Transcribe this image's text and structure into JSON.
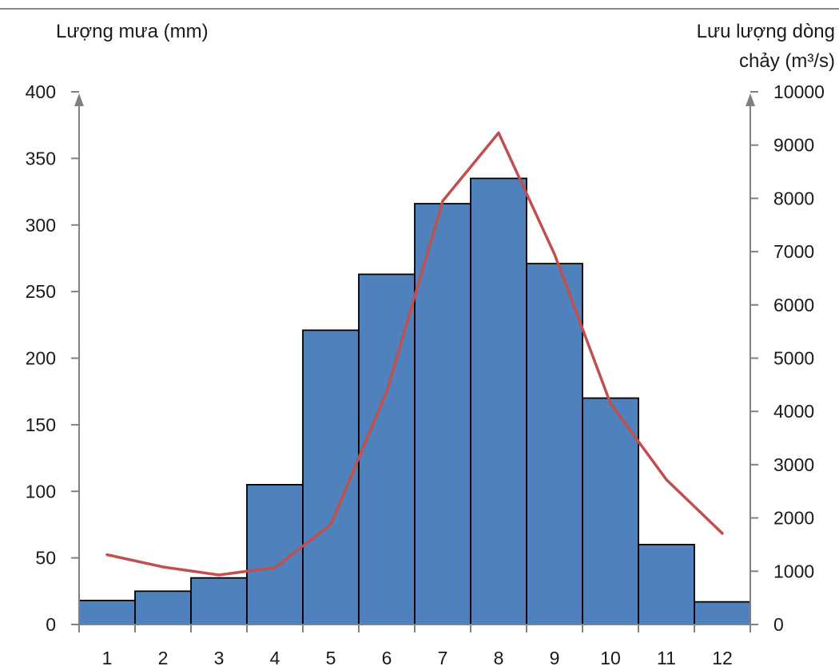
{
  "chart_data": {
    "type": "bar+line",
    "categories": [
      "1",
      "2",
      "3",
      "4",
      "5",
      "6",
      "7",
      "8",
      "9",
      "10",
      "11",
      "12"
    ],
    "series": [
      {
        "axis": "left",
        "type": "bar",
        "values": [
          18,
          25,
          35,
          105,
          221,
          263,
          316,
          335,
          271,
          170,
          60,
          17
        ]
      },
      {
        "axis": "right",
        "type": "line",
        "values": [
          1310,
          1080,
          930,
          1070,
          1880,
          4380,
          7950,
          9230,
          6950,
          4150,
          2720,
          1710
        ]
      }
    ],
    "left_axis": {
      "label": "Lượng mưa (mm)",
      "ylim": [
        0,
        400
      ],
      "ticks": [
        0,
        50,
        100,
        150,
        200,
        250,
        300,
        350,
        400
      ]
    },
    "right_axis": {
      "label_line1": "Lưu lượng dòng",
      "label_line2": "chảy (m³/s)",
      "ylim": [
        0,
        10000
      ],
      "ticks": [
        0,
        1000,
        2000,
        3000,
        4000,
        5000,
        6000,
        7000,
        8000,
        9000,
        10000
      ]
    },
    "colors": {
      "bar": "#4f81bd",
      "bar_edge": "#000000",
      "line": "#c0504d",
      "axis": "#808080"
    }
  }
}
